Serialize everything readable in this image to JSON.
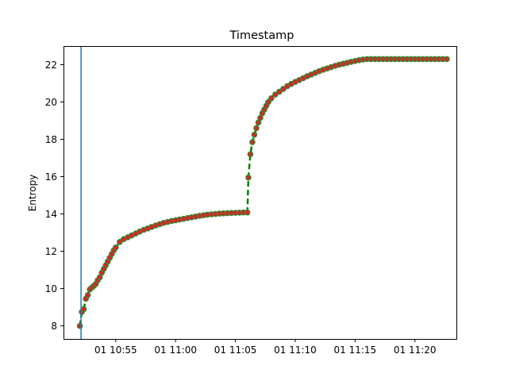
{
  "chart_data": {
    "type": "line",
    "title": "Timestamp",
    "xlabel": "",
    "ylabel": "Entropy",
    "x_unit": "time (HH:MM)",
    "xlim": [
      "10:50:38",
      "11:23:28"
    ],
    "ylim": [
      7.3,
      23.0
    ],
    "x_ticks": [
      {
        "value": "10:55",
        "label": "01 10:55"
      },
      {
        "value": "11:00",
        "label": "01 11:00"
      },
      {
        "value": "11:05",
        "label": "01 11:05"
      },
      {
        "value": "11:10",
        "label": "01 11:10"
      },
      {
        "value": "11:15",
        "label": "01 11:15"
      },
      {
        "value": "11:20",
        "label": "01 11:20"
      }
    ],
    "y_ticks": [
      8,
      10,
      12,
      14,
      16,
      18,
      20,
      22
    ],
    "vertical_line": {
      "x": "10:52:06",
      "color": "#1f77b4"
    },
    "grid": false,
    "legend": "none",
    "series": [
      {
        "line_color": "#008000",
        "line_style": "dashed",
        "marker_color": "#d62728",
        "marker_edge_color": "#2e8b2e",
        "x": [
          "10:52:00",
          "10:52:10",
          "10:52:20",
          "10:52:30",
          "10:52:40",
          "10:52:50",
          "10:53:00",
          "10:53:10",
          "10:53:20",
          "10:53:30",
          "10:53:40",
          "10:53:50",
          "10:54:00",
          "10:54:10",
          "10:54:20",
          "10:54:30",
          "10:54:40",
          "10:54:50",
          "10:55:00",
          "10:55:20",
          "10:55:40",
          "10:56:00",
          "10:56:20",
          "10:56:40",
          "10:57:00",
          "10:57:20",
          "10:57:40",
          "10:58:00",
          "10:58:20",
          "10:58:40",
          "10:59:00",
          "10:59:20",
          "10:59:40",
          "11:00:00",
          "11:00:20",
          "11:00:40",
          "11:01:00",
          "11:01:20",
          "11:01:40",
          "11:02:00",
          "11:02:20",
          "11:02:40",
          "11:03:00",
          "11:03:20",
          "11:03:40",
          "11:04:00",
          "11:04:20",
          "11:04:40",
          "11:05:00",
          "11:05:20",
          "11:05:40",
          "11:06:00",
          "11:06:05",
          "11:06:15",
          "11:06:25",
          "11:06:35",
          "11:06:45",
          "11:06:55",
          "11:07:05",
          "11:07:15",
          "11:07:25",
          "11:07:35",
          "11:07:45",
          "11:08:00",
          "11:08:20",
          "11:08:40",
          "11:09:00",
          "11:09:20",
          "11:09:40",
          "11:10:00",
          "11:10:20",
          "11:10:40",
          "11:11:00",
          "11:11:20",
          "11:11:40",
          "11:12:00",
          "11:12:20",
          "11:12:40",
          "11:13:00",
          "11:13:20",
          "11:13:40",
          "11:14:00",
          "11:14:20",
          "11:14:40",
          "11:15:00",
          "11:15:20",
          "11:15:40",
          "11:16:00",
          "11:16:20",
          "11:16:40",
          "11:17:00",
          "11:17:20",
          "11:17:40",
          "11:18:00",
          "11:18:20",
          "11:18:40",
          "11:19:00",
          "11:19:20",
          "11:19:40",
          "11:20:00",
          "11:20:20",
          "11:20:40",
          "11:21:00",
          "11:21:20",
          "11:21:40",
          "11:22:00",
          "11:22:20",
          "11:22:40"
        ],
        "y": [
          8.0,
          8.75,
          8.9,
          9.45,
          9.65,
          9.95,
          10.05,
          10.15,
          10.25,
          10.45,
          10.6,
          10.85,
          11.05,
          11.25,
          11.45,
          11.65,
          11.85,
          12.05,
          12.2,
          12.5,
          12.65,
          12.75,
          12.85,
          12.95,
          13.05,
          13.15,
          13.22,
          13.3,
          13.38,
          13.45,
          13.52,
          13.57,
          13.62,
          13.66,
          13.7,
          13.74,
          13.78,
          13.82,
          13.86,
          13.9,
          13.93,
          13.96,
          13.98,
          14.0,
          14.02,
          14.03,
          14.04,
          14.05,
          14.06,
          14.07,
          14.08,
          14.08,
          15.95,
          17.2,
          17.85,
          18.25,
          18.6,
          18.9,
          19.15,
          19.4,
          19.6,
          19.8,
          20.0,
          20.2,
          20.4,
          20.55,
          20.7,
          20.85,
          20.97,
          21.08,
          21.18,
          21.28,
          21.38,
          21.47,
          21.56,
          21.65,
          21.73,
          21.8,
          21.87,
          21.94,
          22.0,
          22.05,
          22.1,
          22.15,
          22.2,
          22.24,
          22.28,
          22.3,
          22.3,
          22.3,
          22.3,
          22.3,
          22.3,
          22.3,
          22.3,
          22.3,
          22.3,
          22.3,
          22.3,
          22.3,
          22.3,
          22.3,
          22.3,
          22.3,
          22.3,
          22.3,
          22.3,
          22.3
        ]
      }
    ]
  }
}
